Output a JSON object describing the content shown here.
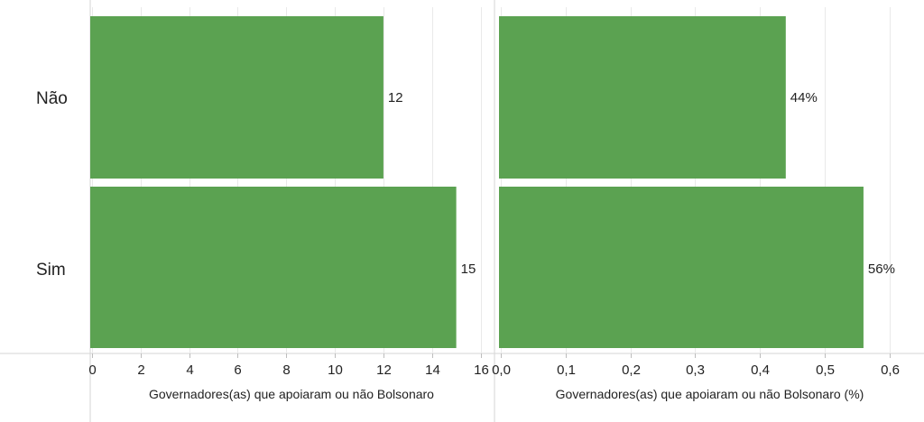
{
  "chart_data": [
    {
      "type": "bar",
      "orientation": "horizontal",
      "categories": [
        "Não",
        "Sim"
      ],
      "values": [
        12,
        15
      ],
      "value_labels": [
        "12",
        "15"
      ],
      "xlabel": "Governadores(as) que apoiaram ou não Bolsonaro",
      "xlim": [
        0,
        16.5
      ],
      "ticks": [
        0,
        2,
        4,
        6,
        8,
        10,
        12,
        14,
        16
      ],
      "tick_labels": [
        "0",
        "2",
        "4",
        "6",
        "8",
        "10",
        "12",
        "14",
        "16"
      ],
      "grid": true
    },
    {
      "type": "bar",
      "orientation": "horizontal",
      "categories": [
        "Não",
        "Sim"
      ],
      "values": [
        0.44,
        0.56
      ],
      "value_labels": [
        "44%",
        "56%"
      ],
      "xlabel": "Governadores(as) que apoiaram ou não Bolsonaro (%)",
      "xlim": [
        0,
        0.62
      ],
      "ticks": [
        0,
        0.1,
        0.2,
        0.3,
        0.4,
        0.5,
        0.6
      ],
      "tick_labels": [
        "0,0",
        "0,1",
        "0,2",
        "0,3",
        "0,4",
        "0,5",
        "0,6"
      ],
      "grid": true
    }
  ],
  "colors": {
    "bar": "#5ba251"
  }
}
